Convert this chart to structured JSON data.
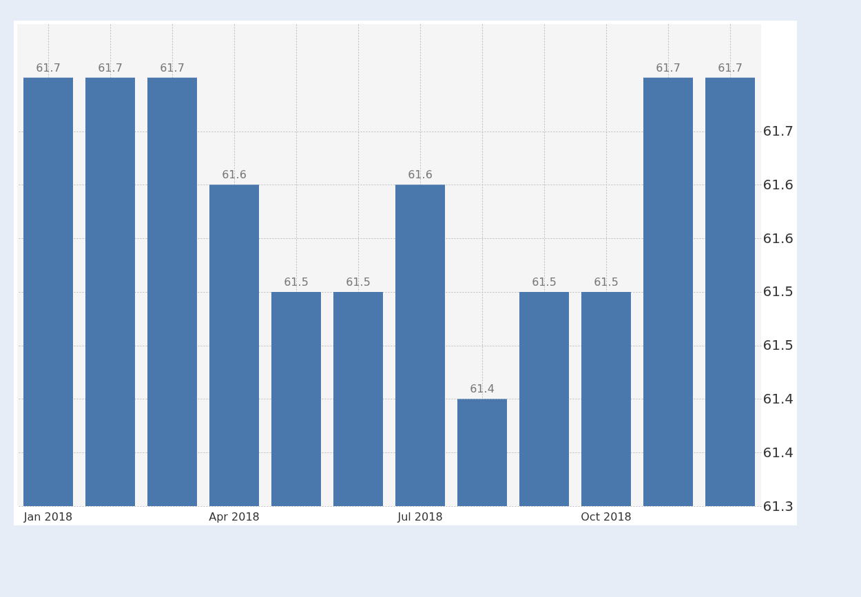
{
  "chart_data": {
    "type": "bar",
    "categories": [
      "Jan 2018",
      null,
      null,
      "Apr 2018",
      null,
      null,
      "Jul 2018",
      null,
      null,
      "Oct 2018",
      null,
      null
    ],
    "values": [
      61.7,
      61.7,
      61.7,
      61.6,
      61.5,
      61.5,
      61.6,
      61.4,
      61.5,
      61.5,
      61.7,
      61.7
    ],
    "color": "#4a78ad",
    "ylim": [
      61.3,
      61.75
    ],
    "yticks": [
      {
        "value": 61.3,
        "label": "61.3"
      },
      {
        "value": 61.35,
        "label": "61.4"
      },
      {
        "value": 61.4,
        "label": "61.4"
      },
      {
        "value": 61.45,
        "label": "61.5"
      },
      {
        "value": 61.5,
        "label": "61.5"
      },
      {
        "value": 61.55,
        "label": "61.6"
      },
      {
        "value": 61.6,
        "label": "61.6"
      },
      {
        "value": 61.65,
        "label": "61.7"
      }
    ],
    "grid": true,
    "data_labels": true
  }
}
